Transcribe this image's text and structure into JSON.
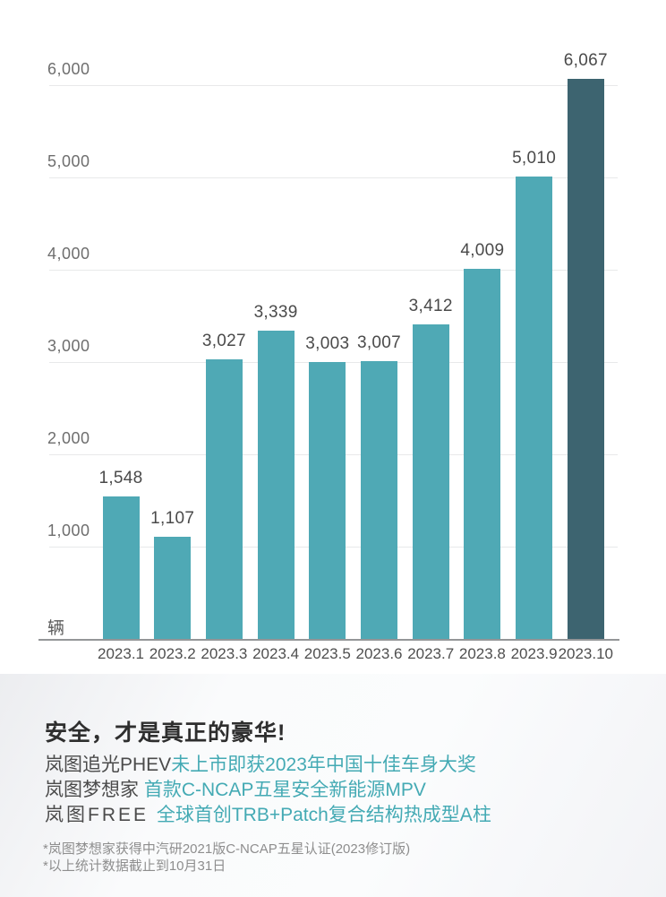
{
  "chart_data": {
    "type": "bar",
    "title": "",
    "unit_label": "辆",
    "categories": [
      "2023.1",
      "2023.2",
      "2023.3",
      "2023.4",
      "2023.5",
      "2023.6",
      "2023.7",
      "2023.8",
      "2023.9",
      "2023.10"
    ],
    "values": [
      1548,
      1107,
      3027,
      3339,
      3003,
      3007,
      3412,
      4009,
      5010,
      6067
    ],
    "value_labels": [
      "1,548",
      "1,107",
      "3,027",
      "3,339",
      "3,003",
      "3,007",
      "3,412",
      "4,009",
      "5,010",
      "6,067"
    ],
    "highlight_index": 9,
    "yticks": [
      1000,
      2000,
      3000,
      4000,
      5000,
      6000
    ],
    "ytick_labels": [
      "1,000",
      "2,000",
      "3,000",
      "4,000",
      "5,000",
      "6,000"
    ],
    "ylim": [
      0,
      6500
    ],
    "grid": true,
    "legend": "none",
    "bar_color": "#4fa9b5",
    "highlight_color": "#3d6470"
  },
  "footer": {
    "title": "安全，才是真正的豪华!",
    "lines": [
      {
        "prefix": "岚图追光PHEV",
        "highlight": "未上市即获2023年中国十佳车身大奖",
        "logo_style": false
      },
      {
        "prefix": "岚图梦想家 ",
        "highlight": "首款C-NCAP五星安全新能源MPV",
        "logo_style": false
      },
      {
        "prefix": "岚图FREE ",
        "highlight": "全球首创TRB+Patch复合结构热成型A柱",
        "logo_style": true
      }
    ],
    "footnotes": [
      "*岚图梦想家获得中汽研2021版C-NCAP五星认证(2023修订版)",
      "*以上统计数据截止到10月31日"
    ],
    "accent_color": "#44aab4"
  }
}
